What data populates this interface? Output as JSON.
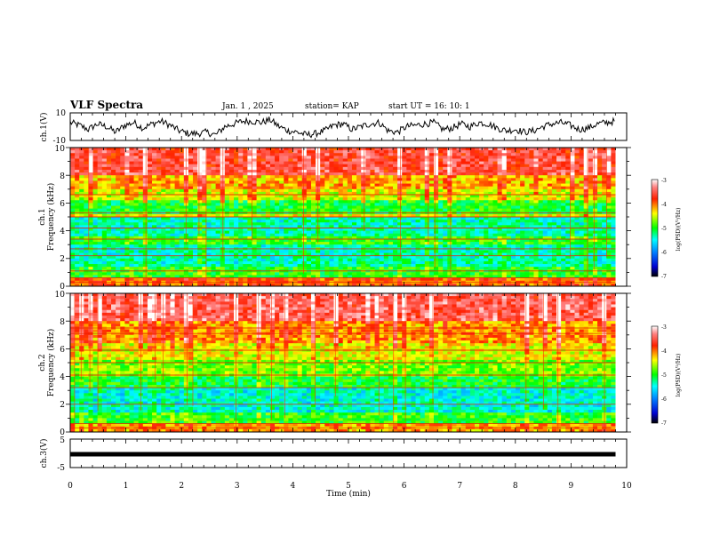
{
  "header": {
    "title": "VLF Spectra",
    "date": "Jan. 1 , 2025",
    "station": "station= KAP",
    "start": "start  UT =   16: 10: 1"
  },
  "chart_data": [
    {
      "id": "ch1",
      "type": "line",
      "ylabel": "ch.1(V)",
      "ylim": [
        -10,
        10
      ],
      "tick_labels": [
        "10",
        "-10"
      ],
      "xlim": [
        0,
        10
      ],
      "data_end": 9.8,
      "description_series": "ch.1 waveform envelope (V)",
      "values": [
        3,
        1,
        -2,
        2,
        0,
        -4,
        1,
        3,
        -1,
        2,
        4,
        1,
        -3,
        -5,
        -5,
        -4,
        -6,
        0,
        2,
        4,
        4,
        3,
        5,
        0,
        -3,
        -4,
        -6,
        -5,
        -3,
        1,
        2,
        -2,
        0,
        2,
        3,
        -3,
        -4,
        0,
        1,
        2,
        3,
        -2,
        -1,
        2,
        0,
        3,
        2,
        -1,
        -3,
        -2,
        -4,
        -3,
        0,
        2,
        3,
        1,
        -2,
        -1,
        2,
        3,
        4
      ]
    },
    {
      "id": "ch1_spec",
      "type": "heatmap",
      "ylabel_line1": "ch.1",
      "ylabel_line2": "Frequency (kHz)",
      "ylim": [
        0,
        10
      ],
      "yticks": [
        "0",
        "2",
        "4",
        "6",
        "8",
        "10"
      ],
      "xlim": [
        0,
        10
      ],
      "data_end": 9.8,
      "colorbar": {
        "label": "log(PSD)(V²/Hz)",
        "range": [
          -7,
          -3
        ],
        "ticks": [
          "-3",
          "-4",
          "-5",
          "-6",
          "-7"
        ]
      },
      "bands": [
        {
          "from": 0.0,
          "to": 0.6,
          "level": -4.0
        },
        {
          "from": 0.6,
          "to": 1.5,
          "level": -5.0
        },
        {
          "from": 1.5,
          "to": 3.0,
          "level": -5.4
        },
        {
          "from": 3.0,
          "to": 3.6,
          "level": -5.0
        },
        {
          "from": 3.6,
          "to": 5.0,
          "level": -5.4
        },
        {
          "from": 5.0,
          "to": 5.3,
          "level": -4.5
        },
        {
          "from": 5.3,
          "to": 6.2,
          "level": -5.1
        },
        {
          "from": 6.2,
          "to": 7.0,
          "level": -4.6
        },
        {
          "from": 7.0,
          "to": 8.0,
          "level": -4.3
        },
        {
          "from": 8.0,
          "to": 10.0,
          "level": -3.7
        }
      ],
      "lines_khz": [
        0.3,
        0.6,
        1.1,
        2.2,
        2.7,
        3.4,
        4.2,
        5.0,
        5.3,
        6.6
      ]
    },
    {
      "id": "ch2_spec",
      "type": "heatmap",
      "ylabel_line1": "ch.2",
      "ylabel_line2": "Frequency (kHz)",
      "ylim": [
        0,
        10
      ],
      "yticks": [
        "0",
        "2",
        "4",
        "6",
        "8",
        "10"
      ],
      "xlim": [
        0,
        10
      ],
      "data_end": 9.8,
      "colorbar": {
        "label": "log(PSD)(V²/Hz)",
        "range": [
          -7,
          -3
        ],
        "ticks": [
          "-3",
          "-4",
          "-5",
          "-6",
          "-7"
        ]
      },
      "bands": [
        {
          "from": 0.0,
          "to": 0.6,
          "level": -4.2
        },
        {
          "from": 0.6,
          "to": 1.5,
          "level": -5.0
        },
        {
          "from": 1.5,
          "to": 3.2,
          "level": -5.5
        },
        {
          "from": 3.2,
          "to": 4.0,
          "level": -5.1
        },
        {
          "from": 4.0,
          "to": 5.2,
          "level": -4.8
        },
        {
          "from": 5.2,
          "to": 6.5,
          "level": -4.5
        },
        {
          "from": 6.5,
          "to": 8.0,
          "level": -4.2
        },
        {
          "from": 8.0,
          "to": 10.0,
          "level": -3.6
        }
      ],
      "lines_khz": [
        0.3,
        0.6,
        2.0,
        3.2,
        4.1,
        5.0,
        5.9,
        7.1,
        7.5
      ]
    },
    {
      "id": "ch3",
      "type": "line",
      "ylabel": "ch.3(V)",
      "ylim": [
        -5,
        5
      ],
      "tick_labels": [
        "5",
        "-5"
      ],
      "xlim": [
        0,
        10
      ],
      "data_end": 9.8,
      "constant_value": 0,
      "xticks": [
        "0",
        "1",
        "2",
        "3",
        "4",
        "5",
        "6",
        "7",
        "8",
        "9",
        "10"
      ],
      "xlabel": "Time (min)"
    }
  ]
}
